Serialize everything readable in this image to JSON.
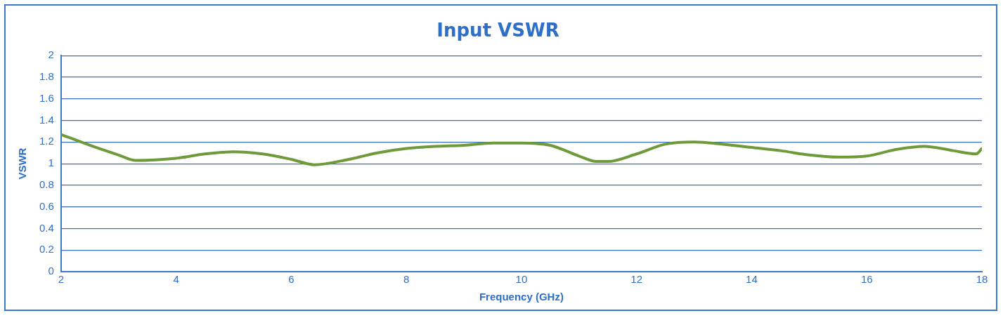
{
  "chart_data": {
    "type": "line",
    "title": "Input VSWR",
    "xlabel": "Frequency (GHz)",
    "ylabel": "VSWR",
    "x": [
      2,
      2.5,
      3,
      3.3,
      4,
      4.5,
      5,
      5.5,
      6,
      6.4,
      7,
      7.5,
      8,
      8.5,
      9,
      9.5,
      10,
      10.5,
      11,
      11.3,
      11.5,
      12,
      12.5,
      13,
      13.5,
      14,
      14.5,
      15,
      15.5,
      16,
      16.5,
      17,
      17.5,
      17.9,
      18
    ],
    "series": [
      {
        "color": "#6f9a3a",
        "values": [
          1.27,
          1.17,
          1.08,
          1.03,
          1.05,
          1.09,
          1.11,
          1.09,
          1.04,
          0.99,
          1.04,
          1.1,
          1.14,
          1.16,
          1.17,
          1.19,
          1.19,
          1.17,
          1.07,
          1.02,
          1.02,
          1.09,
          1.18,
          1.2,
          1.18,
          1.15,
          1.12,
          1.08,
          1.06,
          1.07,
          1.13,
          1.16,
          1.12,
          1.09,
          1.14
        ]
      }
    ],
    "xlim": [
      2,
      18
    ],
    "xticks": [
      2,
      4,
      6,
      8,
      10,
      12,
      14,
      16,
      18
    ],
    "ylim": [
      0,
      2
    ],
    "yticks": [
      0,
      0.2,
      0.4,
      0.6,
      0.8,
      1,
      1.2,
      1.4,
      1.6,
      1.8,
      2
    ],
    "grid": "y",
    "legend": false,
    "marker": "none",
    "line_style": "solid"
  }
}
